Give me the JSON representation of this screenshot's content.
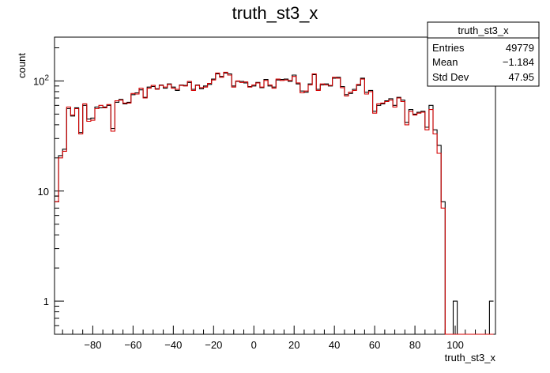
{
  "chart_data": {
    "type": "histogram",
    "title": "truth_st3_x",
    "xlabel": "truth_st3_x",
    "ylabel": "count",
    "xlim": [
      -99,
      120
    ],
    "ylim": [
      0.5,
      250
    ],
    "yscale": "log",
    "grid": false,
    "bin_width": 2,
    "x_ticks": [
      -80,
      -60,
      -40,
      -20,
      0,
      20,
      40,
      60,
      80,
      100
    ],
    "x_tick_labels": [
      "−80",
      "−60",
      "−40",
      "−20",
      "0",
      "20",
      "40",
      "60",
      "80",
      "100"
    ],
    "y_ticks": [
      1,
      10,
      100
    ],
    "y_tick_labels": [
      "1",
      "10",
      "10²"
    ],
    "stats_box": {
      "title": "truth_st3_x",
      "rows": [
        {
          "label": "Entries",
          "value": "49779"
        },
        {
          "label": "Mean",
          "value": "−1.184"
        },
        {
          "label": "Std Dev",
          "value": "47.95"
        }
      ]
    },
    "series": [
      {
        "color": "#000000",
        "x": [
          -98,
          -96,
          -94,
          -92,
          -90,
          -88,
          -86,
          -84,
          -82,
          -80,
          -78,
          -76,
          -74,
          -72,
          -70,
          -68,
          -66,
          -64,
          -62,
          -60,
          -58,
          -56,
          -54,
          -52,
          -50,
          -48,
          -46,
          -44,
          -42,
          -40,
          -38,
          -36,
          -34,
          -32,
          -30,
          -28,
          -26,
          -24,
          -22,
          -20,
          -18,
          -16,
          -14,
          -12,
          -10,
          -8,
          -6,
          -4,
          -2,
          0,
          2,
          4,
          6,
          8,
          10,
          12,
          14,
          16,
          18,
          20,
          22,
          24,
          26,
          28,
          30,
          32,
          34,
          36,
          38,
          40,
          42,
          44,
          46,
          48,
          50,
          52,
          54,
          56,
          58,
          60,
          62,
          64,
          66,
          68,
          70,
          72,
          74,
          76,
          78,
          80,
          82,
          84,
          86,
          88,
          90,
          92,
          94,
          96,
          98,
          100,
          102,
          104,
          106,
          108,
          110,
          112,
          114,
          116,
          118
        ],
        "values": [
          9,
          21,
          24,
          56,
          48,
          57,
          34,
          60,
          45,
          46,
          58,
          57,
          58,
          60,
          37,
          64,
          68,
          62,
          64,
          75,
          78,
          83,
          71,
          88,
          89,
          85,
          92,
          86,
          94,
          88,
          82,
          92,
          91,
          97,
          84,
          92,
          85,
          90,
          93,
          104,
          116,
          110,
          118,
          116,
          90,
          99,
          99,
          96,
          89,
          90,
          97,
          87,
          103,
          90,
          88,
          102,
          103,
          104,
          99,
          113,
          94,
          81,
          79,
          94,
          114,
          84,
          92,
          94,
          90,
          106,
          108,
          89,
          75,
          77,
          84,
          91,
          106,
          79,
          82,
          53,
          60,
          62,
          66,
          69,
          60,
          71,
          67,
          42,
          55,
          50,
          52,
          53,
          38,
          60,
          36,
          26,
          8,
          0,
          0,
          1,
          0,
          0,
          0,
          0,
          0,
          0,
          0,
          0,
          1
        ]
      },
      {
        "color": "#d40000",
        "x": [
          -98,
          -96,
          -94,
          -92,
          -90,
          -88,
          -86,
          -84,
          -82,
          -80,
          -78,
          -76,
          -74,
          -72,
          -70,
          -68,
          -66,
          -64,
          -62,
          -60,
          -58,
          -56,
          -54,
          -52,
          -50,
          -48,
          -46,
          -44,
          -42,
          -40,
          -38,
          -36,
          -34,
          -32,
          -30,
          -28,
          -26,
          -24,
          -22,
          -20,
          -18,
          -16,
          -14,
          -12,
          -10,
          -8,
          -6,
          -4,
          -2,
          0,
          2,
          4,
          6,
          8,
          10,
          12,
          14,
          16,
          18,
          20,
          22,
          24,
          26,
          28,
          30,
          32,
          34,
          36,
          38,
          40,
          42,
          44,
          46,
          48,
          50,
          52,
          54,
          56,
          58,
          60,
          62,
          64,
          66,
          68,
          70,
          72,
          74,
          76,
          78,
          80,
          82,
          84,
          86,
          88,
          90,
          92,
          94,
          96,
          98,
          100,
          102,
          104,
          106,
          108,
          110,
          112,
          114,
          116,
          118
        ],
        "values": [
          8,
          20,
          23,
          58,
          49,
          56,
          33,
          62,
          43,
          44,
          56,
          60,
          57,
          61,
          35,
          66,
          67,
          63,
          63,
          77,
          76,
          86,
          70,
          86,
          91,
          84,
          91,
          88,
          93,
          86,
          84,
          91,
          90,
          99,
          82,
          91,
          87,
          88,
          95,
          102,
          118,
          108,
          120,
          113,
          88,
          100,
          97,
          98,
          88,
          92,
          96,
          88,
          101,
          92,
          86,
          104,
          101,
          102,
          101,
          110,
          96,
          78,
          81,
          92,
          116,
          82,
          94,
          92,
          91,
          108,
          106,
          87,
          73,
          79,
          82,
          93,
          104,
          76,
          80,
          51,
          62,
          63,
          65,
          67,
          58,
          70,
          65,
          40,
          53,
          49,
          51,
          52,
          36,
          55,
          33,
          22,
          7,
          0,
          0,
          0,
          0,
          0,
          0,
          0,
          0,
          0,
          0,
          0,
          0
        ]
      }
    ]
  }
}
